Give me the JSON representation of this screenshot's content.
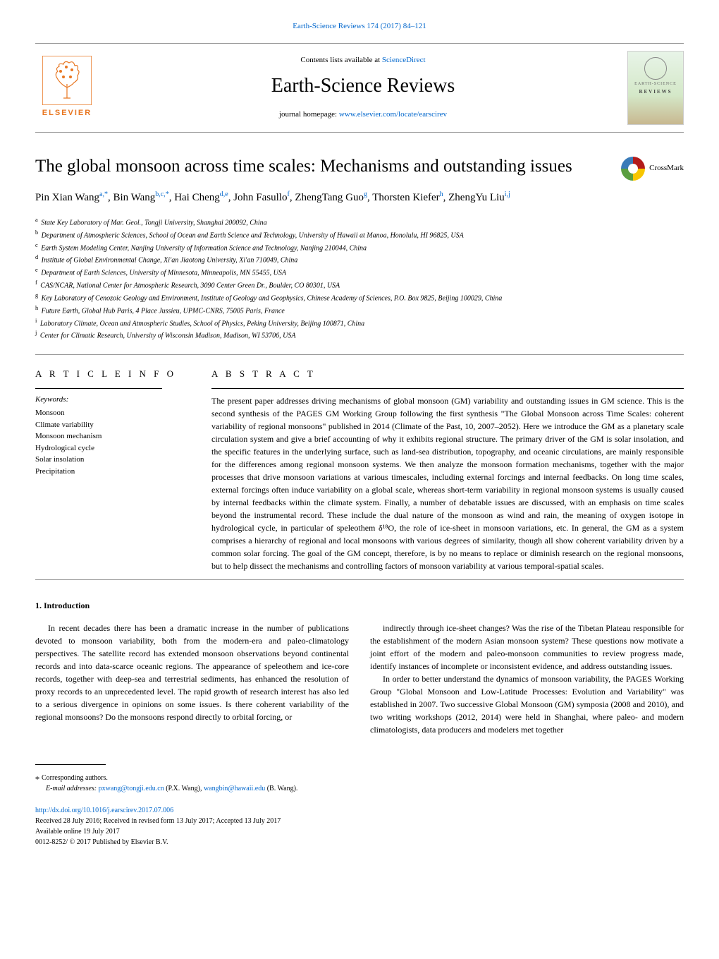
{
  "top": {
    "citation": "Earth-Science Reviews 174 (2017) 84–121",
    "contents_prefix": "Contents lists available at ",
    "contents_link": "ScienceDirect",
    "journal_name": "Earth-Science Reviews",
    "homepage_prefix": "journal homepage: ",
    "homepage_link": "www.elsevier.com/locate/earscirev",
    "publisher_name": "ELSEVIER",
    "cover_small1": "EARTH-SCIENCE",
    "cover_small2": "REVIEWS",
    "crossmark": "CrossMark"
  },
  "article": {
    "title": "The global monsoon across time scales: Mechanisms and outstanding issues",
    "authors_html": "Pin Xian Wang<sup><a>a</a>,*</sup>, Bin Wang<sup><a>b</a>,<a>c</a>,*</sup>, Hai Cheng<sup><a>d</a>,<a>e</a></sup>, John Fasullo<sup><a>f</a></sup>, ZhengTang Guo<sup><a>g</a></sup>, Thorsten Kiefer<sup><a>h</a></sup>, ZhengYu Liu<sup><a>i</a>,<a>j</a></sup>",
    "affiliations": [
      {
        "key": "a",
        "text": "State Key Laboratory of Mar. Geol., Tongji University, Shanghai 200092, China"
      },
      {
        "key": "b",
        "text": "Department of Atmospheric Sciences, School of Ocean and Earth Science and Technology, University of Hawaii at Manoa, Honolulu, HI 96825, USA"
      },
      {
        "key": "c",
        "text": "Earth System Modeling Center, Nanjing University of Information Science and Technology, Nanjing 210044, China"
      },
      {
        "key": "d",
        "text": "Institute of Global Environmental Change, Xi'an Jiaotong University, Xi'an 710049, China"
      },
      {
        "key": "e",
        "text": "Department of Earth Sciences, University of Minnesota, Minneapolis, MN 55455, USA"
      },
      {
        "key": "f",
        "text": "CAS/NCAR, National Center for Atmospheric Research, 3090 Center Green Dr., Boulder, CO 80301, USA"
      },
      {
        "key": "g",
        "text": "Key Laboratory of Cenozoic Geology and Environment, Institute of Geology and Geophysics, Chinese Academy of Sciences, P.O. Box 9825, Beijing 100029, China"
      },
      {
        "key": "h",
        "text": "Future Earth, Global Hub Paris, 4 Place Jussieu, UPMC-CNRS, 75005 Paris, France"
      },
      {
        "key": "i",
        "text": "Laboratory Climate, Ocean and Atmospheric Studies, School of Physics, Peking University, Beijing 100871, China"
      },
      {
        "key": "j",
        "text": "Center for Climatic Research, University of Wisconsin Madison, Madison, WI 53706, USA"
      }
    ]
  },
  "meta": {
    "info_label": "A R T I C L E  I N F O",
    "abstract_label": "A B S T R A C T",
    "keywords_label": "Keywords:",
    "keywords": [
      "Monsoon",
      "Climate variability",
      "Monsoon mechanism",
      "Hydrological cycle",
      "Solar insolation",
      "Precipitation"
    ],
    "abstract": "The present paper addresses driving mechanisms of global monsoon (GM) variability and outstanding issues in GM science. This is the second synthesis of the PAGES GM Working Group following the first synthesis \"The Global Monsoon across Time Scales: coherent variability of regional monsoons\" published in 2014 (Climate of the Past, 10, 2007–2052). Here we introduce the GM as a planetary scale circulation system and give a brief accounting of why it exhibits regional structure. The primary driver of the GM is solar insolation, and the specific features in the underlying surface, such as land-sea distribution, topography, and oceanic circulations, are mainly responsible for the differences among regional monsoon systems. We then analyze the monsoon formation mechanisms, together with the major processes that drive monsoon variations at various timescales, including external forcings and internal feedbacks. On long time scales, external forcings often induce variability on a global scale, whereas short-term variability in regional monsoon systems is usually caused by internal feedbacks within the climate system. Finally, a number of debatable issues are discussed, with an emphasis on time scales beyond the instrumental record. These include the dual nature of the monsoon as wind and rain, the meaning of oxygen isotope in hydrological cycle, in particular of speleothem δ¹⁸O, the role of ice-sheet in monsoon variations, etc. In general, the GM as a system comprises a hierarchy of regional and local monsoons with various degrees of similarity, though all show coherent variability driven by a common solar forcing. The goal of the GM concept, therefore, is by no means to replace or diminish research on the regional monsoons, but to help dissect the mechanisms and controlling factors of monsoon variability at various temporal-spatial scales."
  },
  "body": {
    "section_heading": "1. Introduction",
    "para1": "In recent decades there has been a dramatic increase in the number of publications devoted to monsoon variability, both from the modern-era and paleo-climatology perspectives. The satellite record has extended monsoon observations beyond continental records and into data-scarce oceanic regions. The appearance of speleothem and ice-core records, together with deep-sea and terrestrial sediments, has enhanced the resolution of proxy records to an unprecedented level. The rapid growth of research interest has also led to a serious divergence in opinions on some issues. Is there coherent variability of the regional monsoons? Do the monsoons respond directly to orbital forcing, or",
    "para2": "indirectly through ice-sheet changes? Was the rise of the Tibetan Plateau responsible for the establishment of the modern Asian monsoon system? These questions now motivate a joint effort of the modern and paleo-monsoon communities to review progress made, identify instances of incomplete or inconsistent evidence, and address outstanding issues.",
    "para3": "In order to better understand the dynamics of monsoon variability, the PAGES Working Group \"Global Monsoon and Low-Latitude Processes: Evolution and Variability\" was established in 2007. Two successive Global Monsoon (GM) symposia (2008 and 2010), and two writing workshops (2012, 2014) were held in Shanghai, where paleo- and modern climatologists, data producers and modelers met together"
  },
  "footer": {
    "corr": "Corresponding authors.",
    "email_label": "E-mail addresses: ",
    "email1": "pxwang@tongji.edu.cn",
    "email1_who": " (P.X. Wang), ",
    "email2": "wangbin@hawaii.edu",
    "email2_who": " (B. Wang).",
    "doi": "http://dx.doi.org/10.1016/j.earscirev.2017.07.006",
    "received": "Received 28 July 2016; Received in revised form 13 July 2017; Accepted 13 July 2017",
    "available": "Available online 19 July 2017",
    "issn": "0012-8252/ © 2017 Published by Elsevier B.V."
  },
  "style": {
    "link_color": "#0066cc",
    "elsevier_orange": "#e87722",
    "border_gray": "#999999"
  }
}
